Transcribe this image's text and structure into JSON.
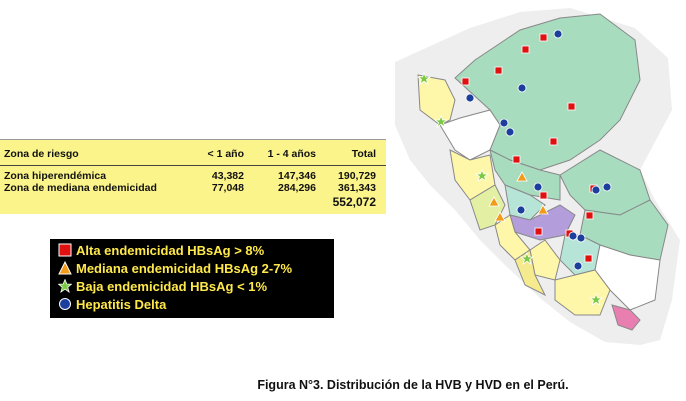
{
  "risk_table": {
    "headers": [
      "Zona de riesgo",
      "< 1 año",
      "1 - 4 años",
      "Total"
    ],
    "rows": [
      {
        "zone": "Zona hiperendémica",
        "under1": "43,382",
        "one_to_four": "147,346",
        "total": "190,729"
      },
      {
        "zone": "Zona de mediana endemicidad",
        "under1": "77,048",
        "one_to_four": "284,296",
        "total": "361,343"
      }
    ],
    "grand_total": "552,072"
  },
  "legend": [
    {
      "label": "Alta endemicidad HBsAg > 8%",
      "icon": "red-square-icon",
      "color": "#e01010"
    },
    {
      "label": "Mediana endemicidad HBsAg 2-7%",
      "icon": "orange-triangle-icon",
      "color": "#f29a1a"
    },
    {
      "label": "Baja endemicidad HBsAg < 1%",
      "icon": "green-star-icon",
      "color": "#7ac943"
    },
    {
      "label": "Hepatitis Delta",
      "icon": "blue-circle-icon",
      "color": "#1c3f9e"
    }
  ],
  "caption": {
    "text": "Figura N°3. Distribución de la HVB y HVD en el Perú."
  }
}
